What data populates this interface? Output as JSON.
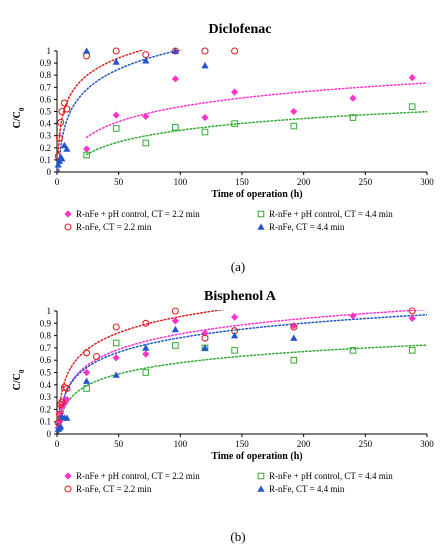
{
  "chart_data": [
    {
      "type": "scatter",
      "title": "Diclofenac",
      "panel_label": "(a)",
      "xlabel": "Time of operation (h)",
      "ylabel": "C/C0",
      "xlim": [
        0,
        300
      ],
      "ylim": [
        0,
        1
      ],
      "xticks": [
        0,
        50,
        100,
        150,
        200,
        250,
        300
      ],
      "yticks": [
        0,
        0.1,
        0.2,
        0.3,
        0.4,
        0.5,
        0.6,
        0.7,
        0.8,
        0.9,
        1
      ],
      "legend_position": "bottom",
      "series": [
        {
          "name": "R-nFe + pH control, CT = 2.2 min",
          "marker": "diamond",
          "color": "#ff33cc",
          "x": [
            24,
            48,
            72,
            96,
            120,
            144,
            192,
            240,
            288
          ],
          "y": [
            0.19,
            0.47,
            0.46,
            0.77,
            0.45,
            0.66,
            0.5,
            0.61,
            0.78
          ],
          "trend": {
            "type": "log",
            "a": 0.178,
            "b": -0.28,
            "x_from": 24
          }
        },
        {
          "name": "R-nFe + pH control, CT = 4.4 min",
          "marker": "open-square",
          "color": "#33aa33",
          "x": [
            24,
            48,
            72,
            96,
            120,
            144,
            192,
            240,
            288
          ],
          "y": [
            0.14,
            0.36,
            0.24,
            0.37,
            0.33,
            0.4,
            0.38,
            0.45,
            0.54
          ],
          "trend": {
            "type": "log",
            "a": 0.14,
            "b": -0.3,
            "x_from": 24
          }
        },
        {
          "name": "R-nFe, CT = 2.2 min",
          "marker": "open-circle",
          "color": "#dd2222",
          "x": [
            1,
            2,
            3,
            4,
            6,
            8,
            24,
            48,
            72,
            96,
            120,
            144
          ],
          "y": [
            0.13,
            0.28,
            0.41,
            0.5,
            0.57,
            0.52,
            0.96,
            1.0,
            0.97,
            1.0,
            1.0,
            1.0
          ],
          "trend": {
            "type": "log",
            "a": 0.2,
            "b": 0.16,
            "x_from": 1
          }
        },
        {
          "name": "R-nFe, CT = 4.4 min",
          "marker": "filled-triangle",
          "color": "#2255cc",
          "x": [
            1,
            2,
            3,
            4,
            6,
            8,
            24,
            48,
            72,
            96,
            120
          ],
          "y": [
            0.06,
            0.09,
            0.12,
            0.11,
            0.22,
            0.19,
            1.0,
            0.91,
            0.92,
            1.0,
            0.88
          ],
          "trend": {
            "type": "log",
            "a": 0.23,
            "b": -0.05,
            "x_from": 1
          }
        }
      ]
    },
    {
      "type": "scatter",
      "title": "Bisphenol A",
      "panel_label": "(b)",
      "xlabel": "Time of operation (h)",
      "ylabel": "C/C0",
      "xlim": [
        0,
        300
      ],
      "ylim": [
        0,
        1
      ],
      "xticks": [
        0,
        50,
        100,
        150,
        200,
        250,
        300
      ],
      "yticks": [
        0,
        0.1,
        0.2,
        0.3,
        0.4,
        0.5,
        0.6,
        0.7,
        0.8,
        0.9,
        1
      ],
      "legend_position": "bottom",
      "series": [
        {
          "name": "R-nFe + pH control, CT = 2.2 min",
          "marker": "diamond",
          "color": "#ff33cc",
          "x": [
            1,
            2,
            3,
            4,
            6,
            8,
            24,
            48,
            72,
            96,
            120,
            144,
            192,
            240,
            288
          ],
          "y": [
            0.05,
            0.1,
            0.17,
            0.22,
            0.25,
            0.28,
            0.5,
            0.62,
            0.65,
            0.92,
            0.82,
            0.95,
            0.88,
            0.96,
            0.94
          ],
          "trend": {
            "type": "log",
            "a": 0.181,
            "b": -0.02,
            "x_from": 1
          }
        },
        {
          "name": "R-nFe + pH control, CT = 4.4 min",
          "marker": "open-square",
          "color": "#33aa33",
          "x": [
            24,
            48,
            72,
            96,
            120,
            144,
            192,
            240,
            288
          ],
          "y": [
            0.37,
            0.74,
            0.5,
            0.72,
            0.7,
            0.68,
            0.6,
            0.68,
            0.68
          ],
          "trend": {
            "type": "log",
            "a": 0.131,
            "b": -0.024,
            "x_from": 1
          }
        },
        {
          "name": "R-nFe, CT = 2.2 min",
          "marker": "open-circle",
          "color": "#dd2222",
          "x": [
            1,
            2,
            3,
            4,
            6,
            8,
            24,
            32,
            48,
            72,
            96,
            120,
            144,
            192,
            288
          ],
          "y": [
            0.09,
            0.16,
            0.24,
            0.26,
            0.38,
            0.37,
            0.66,
            0.63,
            0.87,
            0.9,
            1.0,
            0.78,
            0.84,
            0.87,
            1.0
          ],
          "trend": {
            "type": "log",
            "a": 0.19,
            "b": 0.08,
            "x_from": 1
          }
        },
        {
          "name": "R-nFe, CT = 4.4 min",
          "marker": "filled-triangle",
          "color": "#2255cc",
          "x": [
            1,
            2,
            3,
            4,
            6,
            8,
            24,
            48,
            72,
            96,
            120,
            144,
            192
          ],
          "y": [
            0.04,
            0.05,
            0.06,
            0.14,
            0.13,
            0.13,
            0.43,
            0.48,
            0.7,
            0.85,
            0.7,
            0.8,
            0.78
          ],
          "trend": {
            "type": "log",
            "a": 0.17,
            "b": 0.0,
            "x_from": 1
          }
        }
      ]
    }
  ]
}
